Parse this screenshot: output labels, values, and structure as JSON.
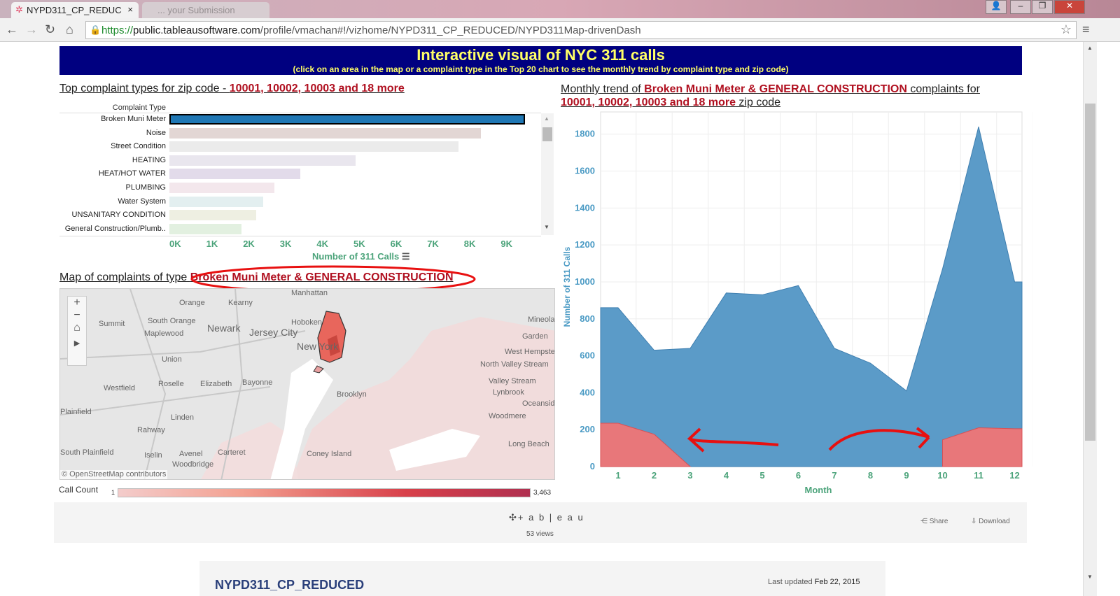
{
  "browser": {
    "tab_title": "NYPD311_CP_REDUC",
    "tab2_title": "... your Submission",
    "url_scheme": "https://",
    "url_host": "public.tableausoftware.com",
    "url_path": "/profile/vmachan#!/vizhome/NYPD311_CP_REDUCED/NYPD311Map-drivenDash"
  },
  "banner": {
    "title": "Interactive visual of NYC 311 calls",
    "subtitle": "(click on an area in the map or a complaint type in the Top 20 chart to see the monthly trend by complaint type and zip code)"
  },
  "bar_section": {
    "title_prefix": "Top complaint types for zip code - ",
    "title_zip": "10001, 10002, 10003 and 18 more"
  },
  "chart_data": [
    {
      "type": "bar",
      "orientation": "horizontal",
      "row_header": "Complaint Type",
      "xlabel": "Number of 311 Calls",
      "categories": [
        "Broken Muni Meter",
        "Noise",
        "Street Condition",
        "HEATING",
        "HEAT/HOT WATER",
        "PLUMBING",
        "Water System",
        "UNSANITARY CONDITION",
        "General Construction/Plumb.."
      ],
      "values": [
        9500,
        8300,
        7700,
        4900,
        3400,
        2700,
        2400,
        2200,
        1800
      ],
      "colors": [
        "#1f77b4",
        "#e2d6d4",
        "#ebebeb",
        "#e9e6ee",
        "#e2dbea",
        "#f3e7ec",
        "#e3eff0",
        "#eeefe2",
        "#e2f0e0"
      ],
      "xticks": [
        "0K",
        "1K",
        "2K",
        "3K",
        "4K",
        "5K",
        "6K",
        "7K",
        "8K",
        "9K"
      ],
      "xlim": [
        0,
        9500
      ]
    },
    {
      "type": "area",
      "xlabel": "Month",
      "ylabel": "Number of 311 Calls",
      "x": [
        1,
        2,
        3,
        4,
        5,
        6,
        7,
        8,
        9,
        10,
        11,
        12
      ],
      "series": [
        {
          "values": [
            860,
            630,
            640,
            940,
            930,
            980,
            640,
            560,
            410,
            1070,
            1840,
            1000
          ],
          "color": "#5b9bc8"
        },
        {
          "values": [
            235,
            175,
            0,
            null,
            null,
            null,
            null,
            null,
            null,
            145,
            210,
            205
          ],
          "color": "#e8777a"
        }
      ],
      "yticks": [
        0,
        200,
        400,
        600,
        800,
        1000,
        1200,
        1400,
        1600,
        1800
      ],
      "ylim": [
        0,
        1920
      ],
      "grid": true
    }
  ],
  "trend_section": {
    "prefix": "Monthly trend of ",
    "types": "Broken Muni Meter & GENERAL CONSTRUCTION",
    "mid": " complaints for",
    "zips": "10001, 10002, 10003 and 18 more",
    "suffix": " zip code"
  },
  "map_section": {
    "title_prefix": "Map of complaints of type ",
    "title_types": "Broken Muni Meter & GENERAL CONSTRUCTION",
    "attribution": "© OpenStreetMap contributors",
    "places": [
      "Orange",
      "Kearny",
      "Summit",
      "South Orange",
      "Newark",
      "Hoboken",
      "Maplewood",
      "Jersey City",
      "New York",
      "Union",
      "Bayonne",
      "Westfield",
      "Roselle",
      "Elizabeth",
      "Brooklyn",
      "Linden",
      "Rahway",
      "Plainfield",
      "South Plainfield",
      "Iselin",
      "Avenel",
      "Carteret",
      "Woodbridge",
      "Coney Island",
      "Mineola",
      "Garden",
      "West Hempstead",
      "North Valley Stream",
      "Valley Stream",
      "Lynbrook",
      "Oceanside",
      "Woodmere",
      "Long Beach",
      "Manhattan"
    ],
    "legend_label": "Call Count",
    "legend_min": "1",
    "legend_max": "3,463"
  },
  "footer": {
    "brand": "+ a b | e a u",
    "views": "53 views",
    "share": "Share",
    "download": "Download"
  },
  "card": {
    "title": "NYPD311_CP_REDUCED",
    "updated_label": "Last updated ",
    "updated_date": "Feb 22, 2015"
  }
}
